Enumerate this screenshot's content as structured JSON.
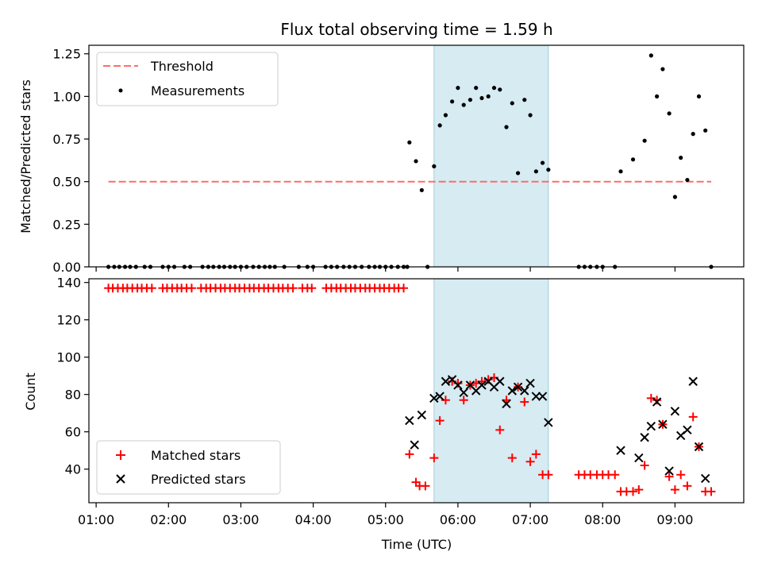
{
  "title": "Flux total observing time = 1.59 h",
  "chart_data": [
    {
      "type": "scatter",
      "ylabel": "Matched/Predicted stars",
      "xlim": [
        0.9,
        9.95
      ],
      "ylim": [
        0.0,
        1.3
      ],
      "yticks": [
        0.0,
        0.25,
        0.5,
        0.75,
        1.0,
        1.25
      ],
      "ytick_labels": [
        "0.00",
        "0.25",
        "0.50",
        "0.75",
        "1.00",
        "1.25"
      ],
      "shaded_span": [
        5.67,
        7.25
      ],
      "threshold": {
        "name": "Threshold",
        "y": 0.5,
        "x": [
          1.17,
          9.5
        ],
        "color": "#ff6b6b"
      },
      "series": [
        {
          "name": "Measurements",
          "marker": "dot",
          "color": "#000000",
          "x": [
            1.17,
            1.25,
            1.32,
            1.4,
            1.47,
            1.55,
            1.67,
            1.75,
            1.92,
            2.0,
            2.08,
            2.22,
            2.3,
            2.47,
            2.55,
            2.62,
            2.7,
            2.77,
            2.85,
            2.92,
            3.0,
            3.08,
            3.17,
            3.25,
            3.33,
            3.4,
            3.47,
            3.6,
            3.8,
            3.92,
            4.0,
            4.17,
            4.25,
            4.33,
            4.42,
            4.5,
            4.58,
            4.67,
            4.77,
            4.85,
            4.92,
            5.0,
            5.08,
            5.17,
            5.25,
            5.3,
            5.58,
            5.33,
            5.42,
            5.5,
            5.67,
            5.75,
            5.83,
            5.92,
            6.0,
            6.08,
            6.17,
            6.25,
            6.33,
            6.42,
            6.5,
            6.58,
            6.67,
            6.75,
            6.83,
            6.92,
            7.0,
            7.08,
            7.17,
            7.25,
            7.67,
            7.75,
            7.83,
            7.92,
            8.0,
            8.17,
            8.25,
            8.42,
            8.58,
            8.67,
            8.75,
            8.83,
            8.92,
            9.0,
            9.08,
            9.17,
            9.25,
            9.33,
            9.42,
            9.5
          ],
          "y": [
            0,
            0,
            0,
            0,
            0,
            0,
            0,
            0,
            0,
            0,
            0,
            0,
            0,
            0,
            0,
            0,
            0,
            0,
            0,
            0,
            0,
            0,
            0,
            0,
            0,
            0,
            0,
            0,
            0,
            0,
            0,
            0,
            0,
            0,
            0,
            0,
            0,
            0,
            0,
            0,
            0,
            0,
            0,
            0,
            0,
            0,
            0,
            0.73,
            0.62,
            0.45,
            0.59,
            0.83,
            0.89,
            0.97,
            1.05,
            0.95,
            0.98,
            1.05,
            0.99,
            1.0,
            1.05,
            1.04,
            0.82,
            0.96,
            0.55,
            0.98,
            0.89,
            0.56,
            0.61,
            0.57,
            0,
            0,
            0,
            0,
            0,
            0,
            0.56,
            0.63,
            0.74,
            1.24,
            1.0,
            1.16,
            0.9,
            0.41,
            0.64,
            0.51,
            0.78,
            1.0,
            0.8,
            0
          ]
        }
      ],
      "legend": {
        "position": "upper-left",
        "entries": [
          "Threshold",
          "Measurements"
        ]
      }
    },
    {
      "type": "scatter",
      "xlabel": "Time (UTC)",
      "ylabel": "Count",
      "xlim": [
        0.9,
        9.95
      ],
      "ylim": [
        22,
        142
      ],
      "xticks": [
        1,
        2,
        3,
        4,
        5,
        6,
        7,
        8,
        9
      ],
      "xtick_labels": [
        "01:00",
        "02:00",
        "03:00",
        "04:00",
        "05:00",
        "06:00",
        "07:00",
        "08:00",
        "09:00"
      ],
      "yticks": [
        40,
        60,
        80,
        100,
        120,
        140
      ],
      "ytick_labels": [
        "40",
        "60",
        "80",
        "100",
        "120",
        "140"
      ],
      "shaded_span": [
        5.67,
        7.25
      ],
      "series": [
        {
          "name": "Matched stars",
          "marker": "plus",
          "color": "#ff0000",
          "x": [
            1.17,
            1.23,
            1.3,
            1.37,
            1.43,
            1.5,
            1.57,
            1.63,
            1.7,
            1.77,
            1.92,
            1.98,
            2.05,
            2.12,
            2.18,
            2.25,
            2.32,
            2.45,
            2.52,
            2.58,
            2.65,
            2.72,
            2.78,
            2.85,
            2.92,
            2.98,
            3.05,
            3.12,
            3.18,
            3.25,
            3.32,
            3.38,
            3.45,
            3.52,
            3.58,
            3.65,
            3.72,
            3.85,
            3.92,
            3.98,
            4.18,
            4.25,
            4.32,
            4.38,
            4.45,
            4.52,
            4.58,
            4.65,
            4.72,
            4.78,
            4.85,
            4.92,
            4.98,
            5.05,
            5.12,
            5.18,
            5.25,
            5.33,
            5.42,
            5.47,
            5.55,
            5.67,
            5.75,
            5.83,
            5.92,
            6.0,
            6.08,
            6.17,
            6.25,
            6.33,
            6.42,
            6.5,
            6.58,
            6.67,
            6.75,
            6.83,
            6.92,
            7.0,
            7.08,
            7.17,
            7.25,
            7.67,
            7.75,
            7.83,
            7.92,
            8.0,
            8.08,
            8.17,
            8.25,
            8.33,
            8.42,
            8.5,
            8.58,
            8.67,
            8.75,
            8.83,
            8.92,
            9.0,
            9.08,
            9.17,
            9.25,
            9.33,
            9.42,
            9.5
          ],
          "y": [
            137,
            137,
            137,
            137,
            137,
            137,
            137,
            137,
            137,
            137,
            137,
            137,
            137,
            137,
            137,
            137,
            137,
            137,
            137,
            137,
            137,
            137,
            137,
            137,
            137,
            137,
            137,
            137,
            137,
            137,
            137,
            137,
            137,
            137,
            137,
            137,
            137,
            137,
            137,
            137,
            137,
            137,
            137,
            137,
            137,
            137,
            137,
            137,
            137,
            137,
            137,
            137,
            137,
            137,
            137,
            137,
            137,
            48,
            33,
            31,
            31,
            46,
            66,
            77,
            87,
            86,
            77,
            85,
            86,
            87,
            88,
            89,
            61,
            77,
            46,
            84,
            76,
            44,
            48,
            37,
            37,
            37,
            37,
            37,
            37,
            37,
            37,
            37,
            28,
            28,
            28,
            29,
            42,
            78,
            77,
            64,
            36,
            29,
            37,
            31,
            68,
            52,
            28,
            28
          ]
        },
        {
          "name": "Predicted stars",
          "marker": "x",
          "color": "#000000",
          "x": [
            5.33,
            5.4,
            5.5,
            5.67,
            5.75,
            5.83,
            5.92,
            6.0,
            6.08,
            6.17,
            6.25,
            6.33,
            6.42,
            6.5,
            6.58,
            6.67,
            6.75,
            6.83,
            6.92,
            7.0,
            7.08,
            7.17,
            7.25,
            8.25,
            8.5,
            8.58,
            8.67,
            8.75,
            8.83,
            8.92,
            9.0,
            9.08,
            9.17,
            9.25,
            9.33,
            9.42
          ],
          "y": [
            66,
            53,
            69,
            78,
            79,
            87,
            88,
            85,
            81,
            85,
            82,
            85,
            87,
            84,
            87,
            75,
            82,
            84,
            82,
            86,
            79,
            79,
            65,
            50,
            46,
            57,
            63,
            76,
            64,
            39,
            71,
            58,
            61,
            87,
            52,
            35
          ]
        }
      ],
      "legend": {
        "position": "lower-left",
        "entries": [
          "Matched stars",
          "Predicted stars"
        ]
      }
    }
  ]
}
